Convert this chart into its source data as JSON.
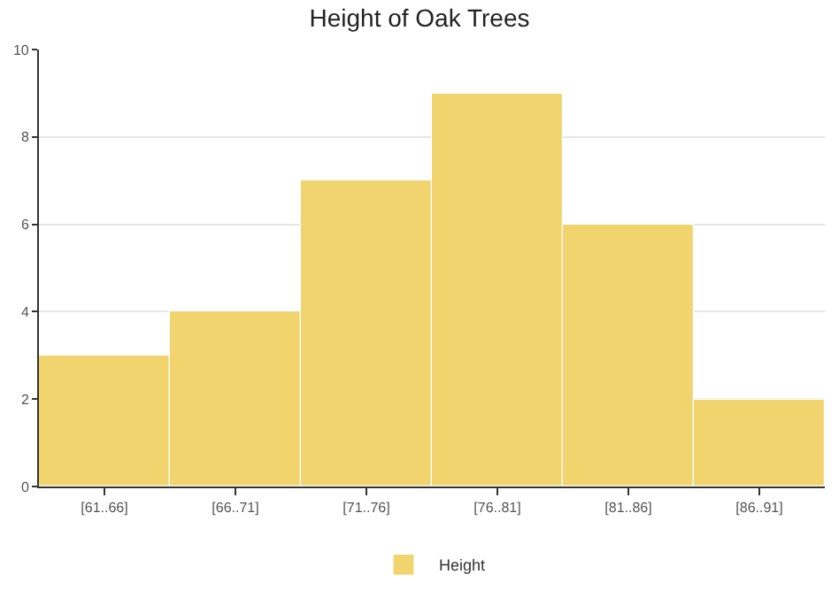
{
  "chart_data": {
    "type": "bar",
    "title": "Height of Oak Trees",
    "categories": [
      "[61..66]",
      "[66..71]",
      "[71..76]",
      "[76..81]",
      "[81..86]",
      "[86..91]"
    ],
    "series": [
      {
        "name": "Height",
        "color": "#f2d46f",
        "values": [
          3,
          4,
          7,
          9,
          6,
          2
        ]
      }
    ],
    "ylim": [
      0,
      10
    ],
    "yticks": [
      0,
      2,
      4,
      6,
      8,
      10
    ],
    "grid": "y",
    "legend": "bottom"
  }
}
